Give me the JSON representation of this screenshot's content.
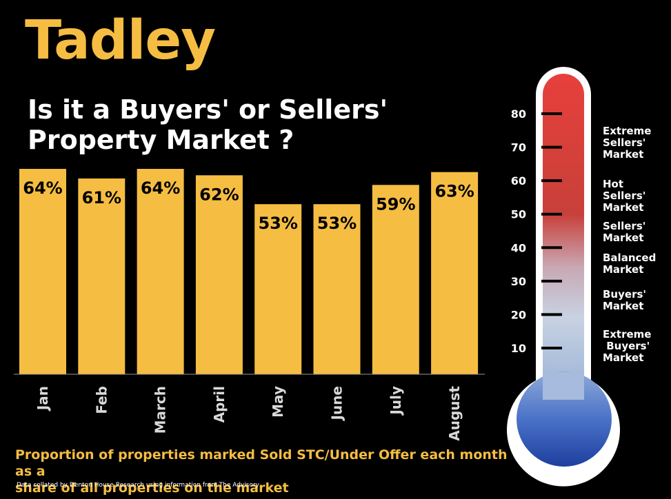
{
  "title": "Tadley",
  "subtitle_line1": "Is it a Buyers' or Sellers'",
  "subtitle_line2": "Property Market ?",
  "footnote_line1": "Proportion of properties marked Sold STC/Under Offer each month as a",
  "footnote_line2": "share of all properties on the market",
  "source": "Data collated by Denton House Research using information from The Advisory",
  "colors": {
    "accent": "#f5bd42",
    "background": "#000000",
    "bar": "#f5bd42",
    "thermo_hot": "#e0403a",
    "thermo_cold": "#2a4fb0"
  },
  "chart_data": {
    "type": "bar",
    "categories": [
      "Jan",
      "Feb",
      "March",
      "April",
      "May",
      "June",
      "July",
      "August"
    ],
    "values": [
      64,
      61,
      64,
      62,
      53,
      53,
      59,
      63
    ],
    "data_labels": [
      "64%",
      "61%",
      "64%",
      "62%",
      "53%",
      "53%",
      "59%",
      "63%"
    ],
    "grid": false,
    "legend": "none"
  },
  "thermometer": {
    "scale_ticks": [
      "80",
      "70",
      "60",
      "50",
      "40",
      "30",
      "20",
      "10"
    ],
    "scale_values": [
      80,
      70,
      60,
      50,
      40,
      30,
      20,
      10
    ],
    "zones": [
      {
        "lines": [
          "Extreme",
          "Sellers'",
          "Market"
        ]
      },
      {
        "lines": [
          "Hot",
          "Sellers'",
          "Market"
        ]
      },
      {
        "lines": [
          "Sellers'",
          "Market"
        ]
      },
      {
        "lines": [
          "Balanced",
          "Market"
        ]
      },
      {
        "lines": [
          "Buyers'",
          "Market"
        ]
      },
      {
        "lines": [
          "Extreme",
          " Buyers'",
          "Market"
        ]
      }
    ]
  }
}
